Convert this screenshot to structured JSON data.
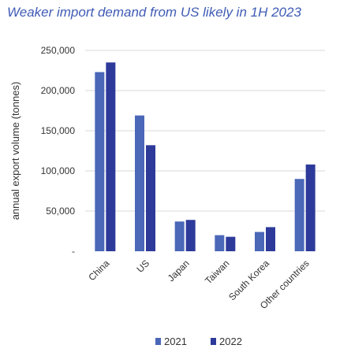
{
  "chart_data": {
    "type": "bar",
    "title": "Weaker import demand from US likely in 1H 2023",
    "xlabel": "",
    "ylabel": "annual export volume (tonnes)",
    "categories": [
      "China",
      "US",
      "Japan",
      "Taiwan",
      "South Korea",
      "Other countries"
    ],
    "series": [
      {
        "name": "2021",
        "color": "#4a67b8",
        "values": [
          223000,
          169000,
          37000,
          20000,
          24000,
          90000
        ]
      },
      {
        "name": "2022",
        "color": "#2d3a9a",
        "values": [
          235000,
          132000,
          39000,
          18000,
          30000,
          108000
        ]
      }
    ],
    "yticks": [
      {
        "value": 0,
        "label": "-"
      },
      {
        "value": 50000,
        "label": "50,000"
      },
      {
        "value": 100000,
        "label": "100,000"
      },
      {
        "value": 150000,
        "label": "150,000"
      },
      {
        "value": 200000,
        "label": "200,000"
      },
      {
        "value": 250000,
        "label": "250,000"
      }
    ],
    "ylim": [
      0,
      250000
    ],
    "grid": "horizontal",
    "legend": "bottom-center"
  }
}
